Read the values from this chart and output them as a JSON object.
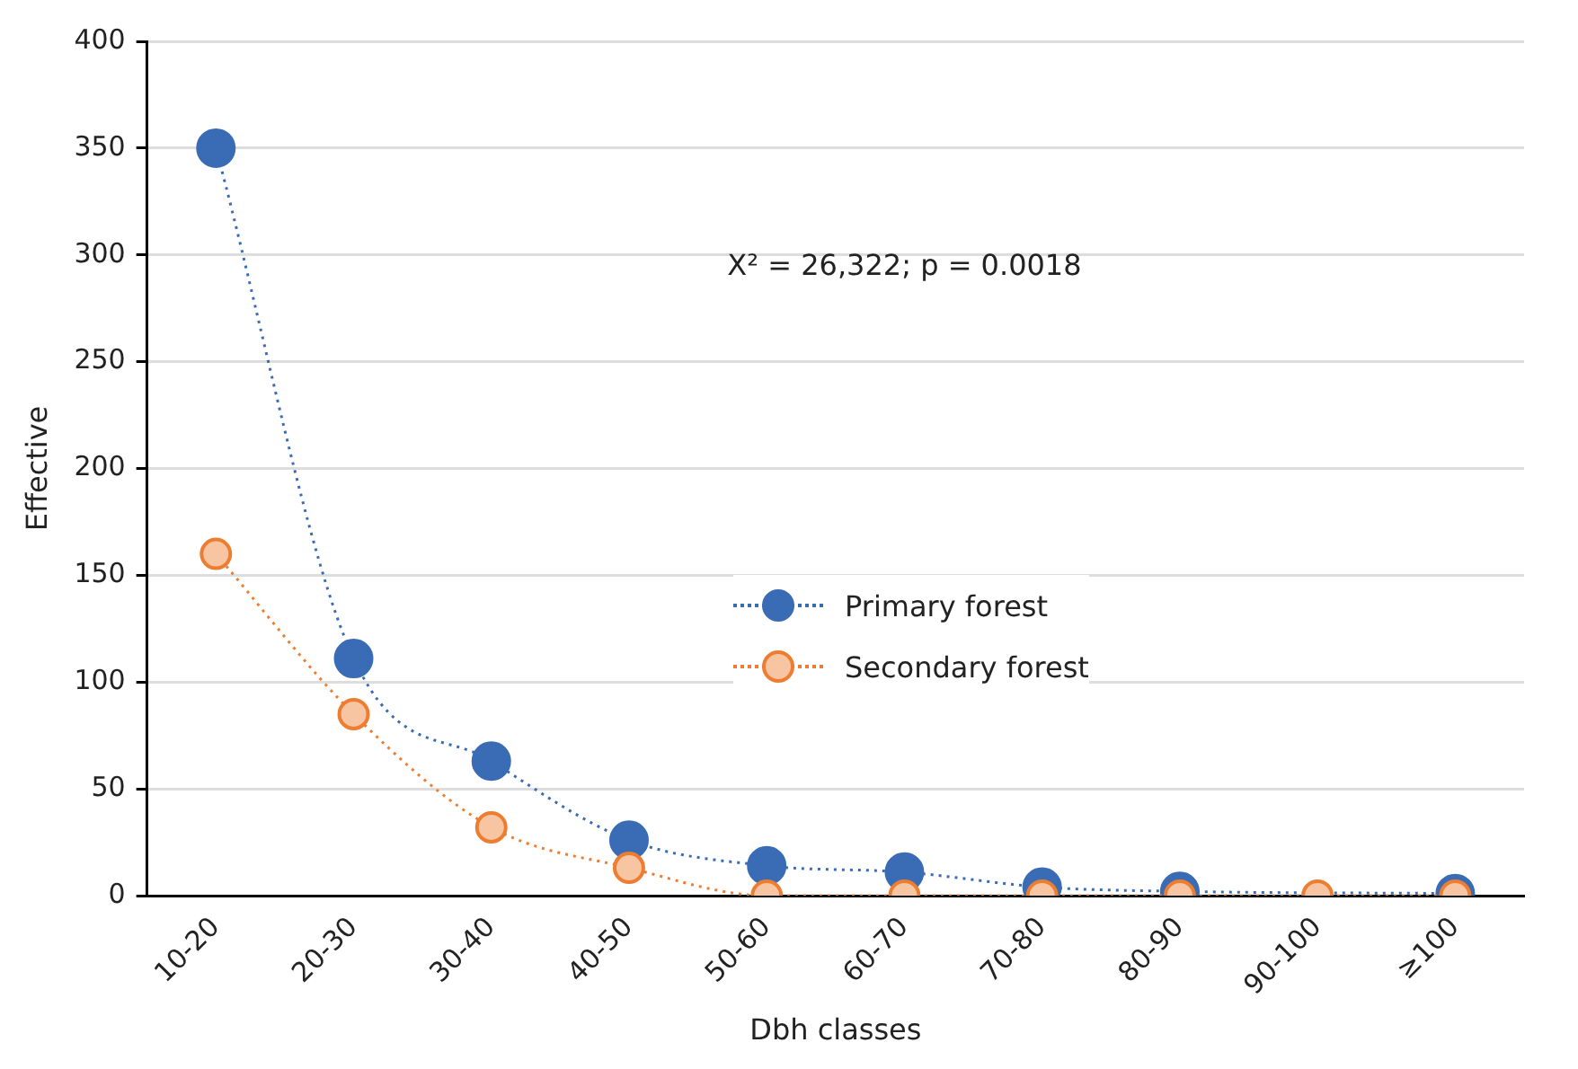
{
  "chart_data": {
    "type": "line",
    "xlabel": "Dbh classes",
    "ylabel": "Effective",
    "categories": [
      "10-20",
      "20-30",
      "30-40",
      "40-50",
      "50-60",
      "60-70",
      "70-80",
      "80-90",
      "90-100",
      "≥100"
    ],
    "series": [
      {
        "name": "Primary forest",
        "color": "#3a6bb5",
        "values": [
          350,
          111,
          63,
          26,
          14,
          11,
          4,
          2,
          null,
          1
        ]
      },
      {
        "name": "Secondary forest",
        "color": "#ed7d31",
        "values": [
          160,
          85,
          32,
          13,
          0,
          0,
          0,
          0,
          0,
          0
        ]
      }
    ],
    "ylim": [
      0,
      400
    ],
    "yticks": [
      0,
      50,
      100,
      150,
      200,
      250,
      300,
      350,
      400
    ],
    "annotations": [
      "X² = 26,322; p = 0.0018"
    ],
    "grid": "y",
    "legend": "center",
    "marker": "circle",
    "line_style": "dotted"
  }
}
